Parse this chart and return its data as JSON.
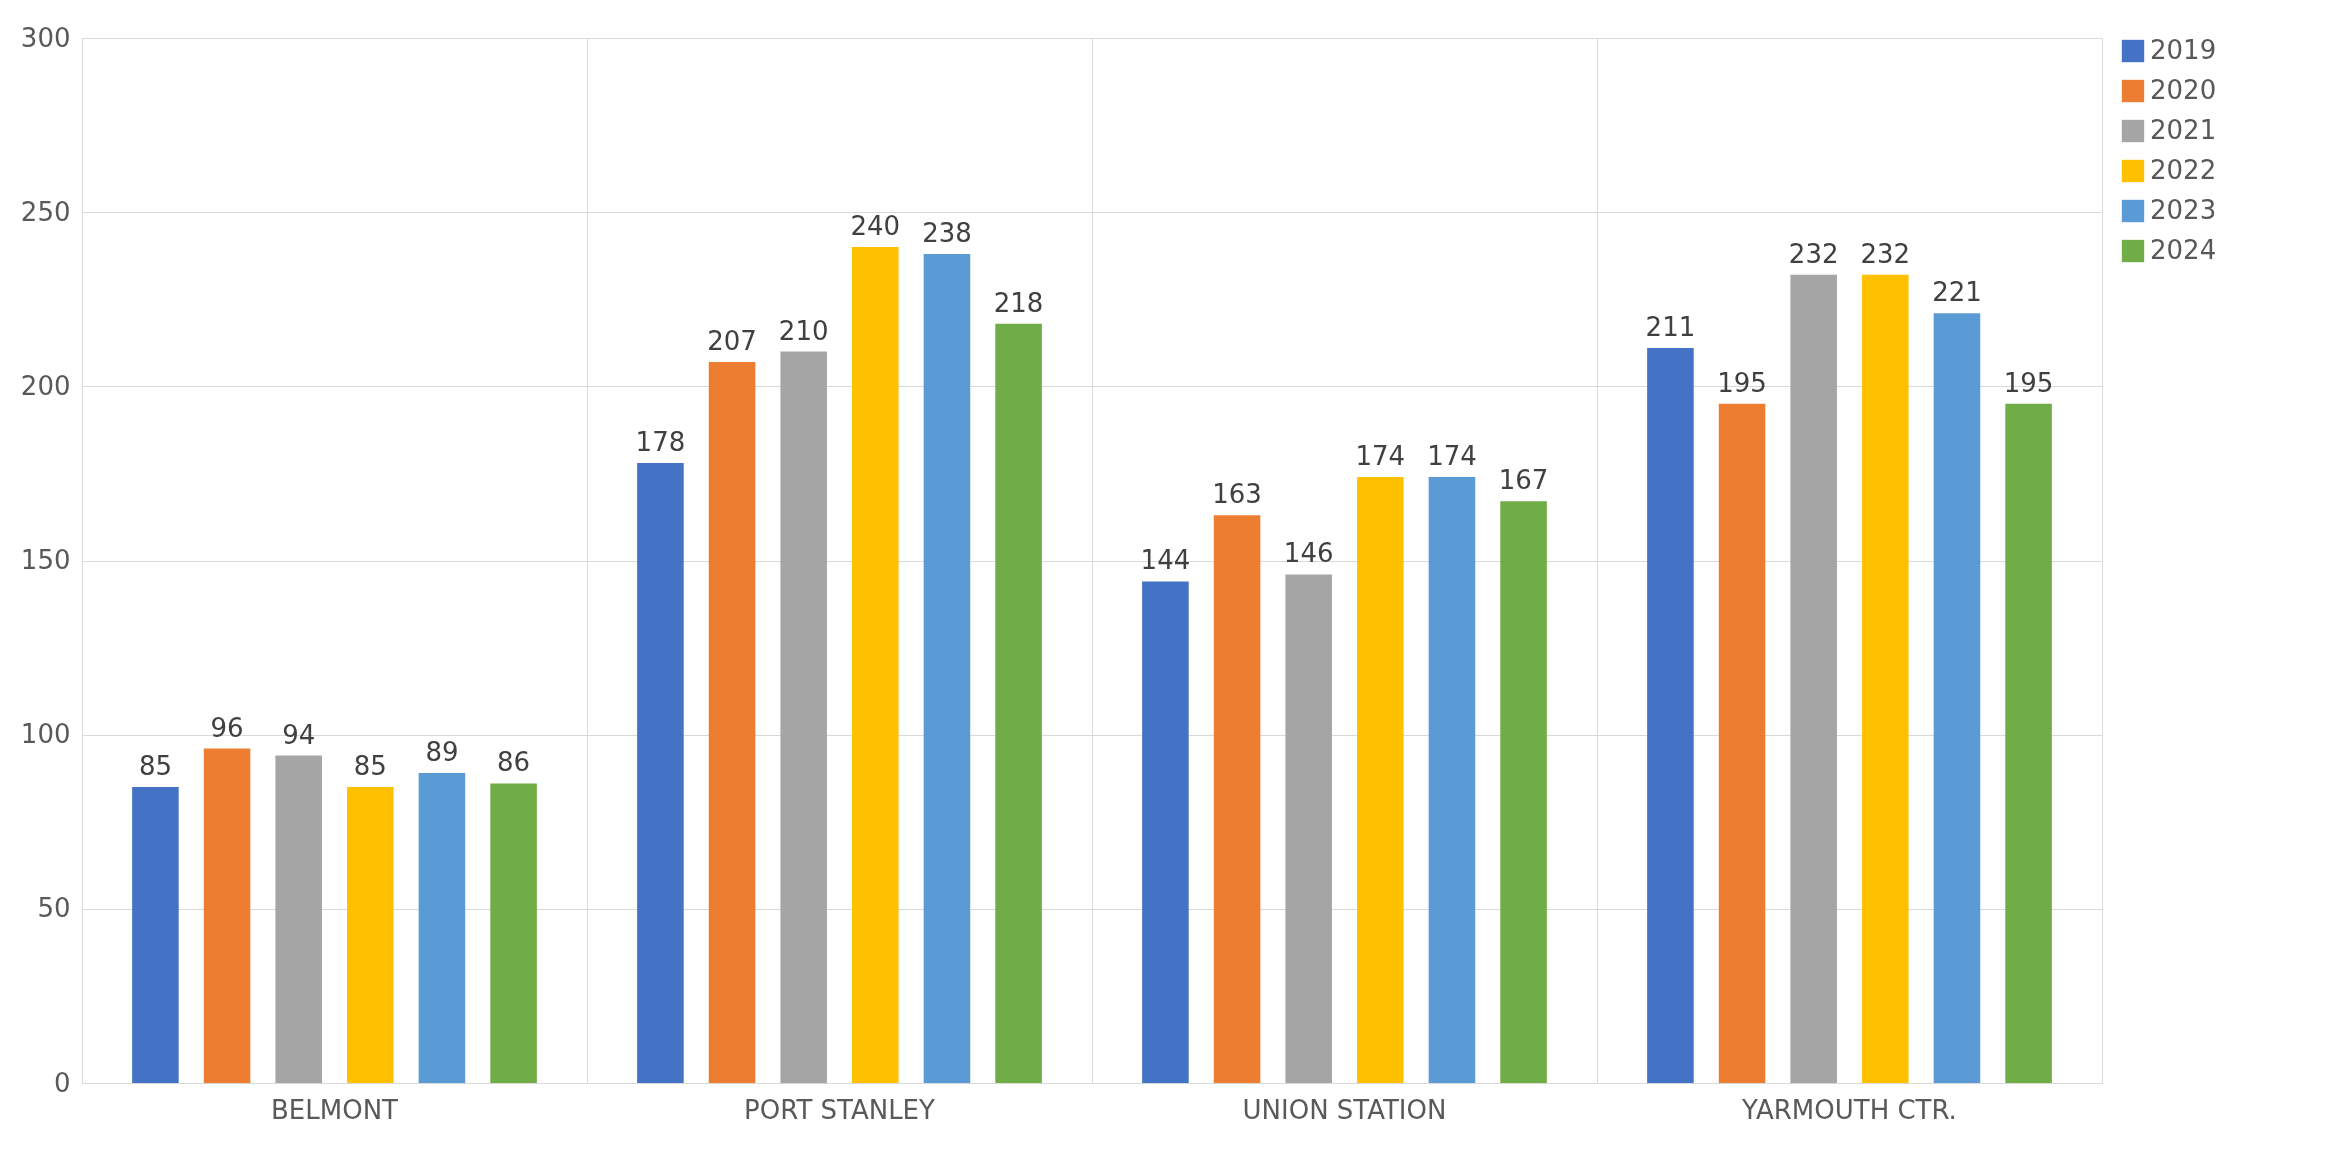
{
  "chart_data": {
    "type": "bar",
    "categories": [
      "BELMONT",
      "PORT STANLEY",
      "UNION STATION",
      "YARMOUTH CTR."
    ],
    "series": [
      {
        "name": "2019",
        "color": "#4472c4",
        "values": [
          85,
          178,
          144,
          211
        ]
      },
      {
        "name": "2020",
        "color": "#ed7d31",
        "values": [
          96,
          207,
          163,
          195
        ]
      },
      {
        "name": "2021",
        "color": "#a5a5a5",
        "values": [
          94,
          210,
          146,
          232
        ]
      },
      {
        "name": "2022",
        "color": "#ffc000",
        "values": [
          85,
          240,
          174,
          232
        ]
      },
      {
        "name": "2023",
        "color": "#5b9bd5",
        "values": [
          89,
          238,
          174,
          221
        ]
      },
      {
        "name": "2024",
        "color": "#70ad47",
        "values": [
          86,
          218,
          167,
          195
        ]
      }
    ],
    "ylim": [
      0,
      300
    ],
    "yticks": [
      0,
      50,
      100,
      150,
      200,
      250,
      300
    ],
    "grid": true,
    "legend": "right",
    "data_labels": true
  }
}
